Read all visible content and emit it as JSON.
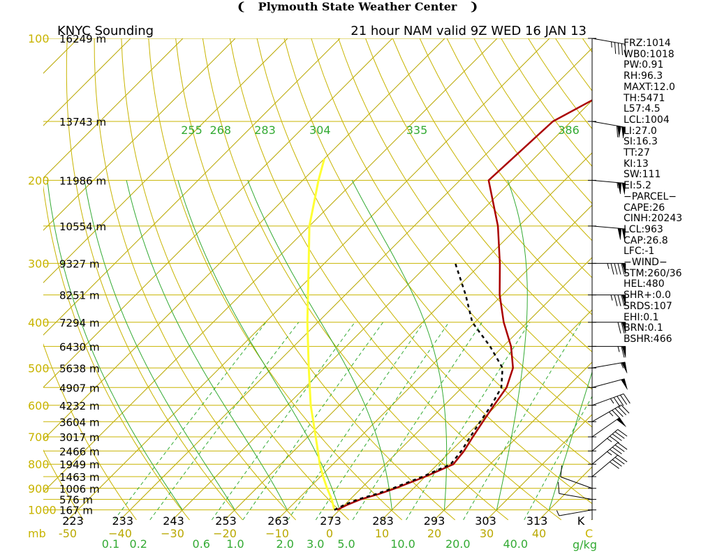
{
  "header": {
    "title": "Plymouth State Weather Center",
    "flag_left": "❨",
    "flag_right": "❩"
  },
  "chart_data": {
    "type": "line",
    "subtitle_left": "KNYC Sounding",
    "subtitle_right": "21 hour NAM valid 9Z WED 16 JAN 13",
    "pressure_label": "mb",
    "pressure_levels": [
      100,
      200,
      300,
      400,
      500,
      600,
      700,
      800,
      900,
      1000
    ],
    "height_labels": [
      {
        "p": 100,
        "label": "16249 m"
      },
      {
        "p": 150,
        "label": "13743 m"
      },
      {
        "p": 200,
        "label": "11986 m"
      },
      {
        "p": 250,
        "label": "10554 m"
      },
      {
        "p": 300,
        "label": "9327 m"
      },
      {
        "p": 350,
        "label": "8251 m"
      },
      {
        "p": 400,
        "label": "7294 m"
      },
      {
        "p": 450,
        "label": "6430 m"
      },
      {
        "p": 500,
        "label": "5638 m"
      },
      {
        "p": 550,
        "label": "4907 m"
      },
      {
        "p": 600,
        "label": "4232 m"
      },
      {
        "p": 650,
        "label": "3604 m"
      },
      {
        "p": 700,
        "label": "3017 m"
      },
      {
        "p": 750,
        "label": "2466 m"
      },
      {
        "p": 800,
        "label": "1949 m"
      },
      {
        "p": 850,
        "label": "1463 m"
      },
      {
        "p": 900,
        "label": "1006 m"
      },
      {
        "p": 950,
        "label": "576 m"
      },
      {
        "p": 1000,
        "label": "167 m"
      }
    ],
    "temperature_ticks": [
      -50,
      -40,
      -30,
      -20,
      -10,
      0,
      10,
      20,
      30,
      40
    ],
    "temperature_tick_labels": [
      "-50",
      "−40",
      "−30",
      "−20",
      "−10",
      "0",
      "10",
      "20",
      "30",
      "40"
    ],
    "temperature_label_right": "C",
    "mixing_ratio_ticks": [
      {
        "label": "0.1",
        "x": -41.8
      },
      {
        "label": "0.2",
        "x": -36.5
      },
      {
        "label": "0.6",
        "x": -24.5
      },
      {
        "label": "1.0",
        "x": -18.0
      },
      {
        "label": "2.0",
        "x": -8.5
      },
      {
        "label": "3.0",
        "x": -2.7
      },
      {
        "label": "5.0",
        "x": 3.2
      },
      {
        "label": "10.0",
        "x": 14.0
      },
      {
        "label": "20.0",
        "x": 24.5
      },
      {
        "label": "40.0",
        "x": 35.5
      }
    ],
    "mixing_ratio_label": "g/kg",
    "theta_labels": [
      {
        "label": "223",
        "x": -49.0
      },
      {
        "label": "233",
        "x": -39.5
      },
      {
        "label": "243",
        "x": -29.8
      },
      {
        "label": "253",
        "x": -19.8
      },
      {
        "label": "263",
        "x": -9.8
      },
      {
        "label": "273",
        "x": 0.2
      },
      {
        "label": "283",
        "x": 10.2
      },
      {
        "label": "293",
        "x": 20.0
      },
      {
        "label": "303",
        "x": 29.8
      },
      {
        "label": "313",
        "x": 39.6
      },
      {
        "label": "K",
        "x": 48.0
      }
    ],
    "theta_e_labels": [
      {
        "label": "255",
        "x": -53.0
      },
      {
        "label": "268",
        "x": -47.5
      },
      {
        "label": "283",
        "x": -39.0
      },
      {
        "label": "304",
        "x": -28.5
      },
      {
        "label": "335",
        "x": -10.0
      },
      {
        "label": "386",
        "x": 19.0
      }
    ],
    "temperature_profile": [
      [
        1000,
        -0.5
      ],
      [
        975,
        0.5
      ],
      [
        950,
        2.0
      ],
      [
        925,
        4.5
      ],
      [
        900,
        6.5
      ],
      [
        850,
        10.0
      ],
      [
        800,
        13.0
      ],
      [
        750,
        12.5
      ],
      [
        700,
        11.5
      ],
      [
        650,
        10.5
      ],
      [
        600,
        9.5
      ],
      [
        550,
        8.5
      ],
      [
        500,
        6.0
      ],
      [
        450,
        1.5
      ],
      [
        400,
        -4.5
      ],
      [
        350,
        -10.5
      ],
      [
        300,
        -16.5
      ],
      [
        250,
        -24.0
      ],
      [
        200,
        -34.5
      ],
      [
        150,
        -33.5
      ],
      [
        100,
        -20.0
      ]
    ],
    "dewpoint_profile": [
      [
        1000,
        -1.0
      ],
      [
        975,
        0.0
      ],
      [
        950,
        1.5
      ],
      [
        925,
        4.0
      ],
      [
        900,
        6.0
      ],
      [
        850,
        9.5
      ],
      [
        800,
        12.5
      ],
      [
        750,
        12.0
      ],
      [
        700,
        11.0
      ],
      [
        650,
        10.0
      ],
      [
        600,
        9.0
      ],
      [
        550,
        7.5
      ],
      [
        500,
        4.0
      ],
      [
        450,
        -2.5
      ],
      [
        400,
        -10.5
      ],
      [
        350,
        -17.0
      ],
      [
        300,
        -25.0
      ]
    ],
    "parcel_path": [
      [
        1000,
        -1.0
      ],
      [
        950,
        -3.5
      ],
      [
        900,
        -6.5
      ],
      [
        850,
        -9.5
      ],
      [
        800,
        -12.5
      ],
      [
        700,
        -18.5
      ],
      [
        600,
        -25.5
      ],
      [
        500,
        -33.0
      ],
      [
        400,
        -42.0
      ],
      [
        300,
        -53.0
      ],
      [
        250,
        -60.0
      ],
      [
        200,
        -67.0
      ],
      [
        180,
        -70.0
      ]
    ],
    "wind_barbs": [
      {
        "p": 100,
        "dir": 280,
        "kt": 45
      },
      {
        "p": 150,
        "dir": 280,
        "kt": 110
      },
      {
        "p": 200,
        "dir": 275,
        "kt": 105
      },
      {
        "p": 250,
        "dir": 275,
        "kt": 100
      },
      {
        "p": 300,
        "dir": 270,
        "kt": 95
      },
      {
        "p": 350,
        "dir": 270,
        "kt": 85
      },
      {
        "p": 400,
        "dir": 270,
        "kt": 70
      },
      {
        "p": 450,
        "dir": 270,
        "kt": 65
      },
      {
        "p": 500,
        "dir": 260,
        "kt": 55
      },
      {
        "p": 550,
        "dir": 255,
        "kt": 50
      },
      {
        "p": 600,
        "dir": 250,
        "kt": 45
      },
      {
        "p": 650,
        "dir": 240,
        "kt": 45
      },
      {
        "p": 700,
        "dir": 235,
        "kt": 50
      },
      {
        "p": 750,
        "dir": 230,
        "kt": 45
      },
      {
        "p": 800,
        "dir": 230,
        "kt": 45
      },
      {
        "p": 850,
        "dir": 230,
        "kt": 40
      },
      {
        "p": 900,
        "dir": 110,
        "kt": 10
      },
      {
        "p": 950,
        "dir": 100,
        "kt": 10
      },
      {
        "p": 1000,
        "dir": 80,
        "kt": 5
      }
    ],
    "colors": {
      "temperature": "#aa0000",
      "dewpoint": "#000000",
      "parcel": "#ffff33",
      "isobar": "#c8b400",
      "isotherm": "#b9a800",
      "dry_adiabat": "#c8b400",
      "moist_adiabat": "#33aa33",
      "mixing_ratio": "#33aa33",
      "text_black": "#000000"
    }
  },
  "indices": [
    "FRZ:1014",
    "WB0:1018",
    "PW:0.91",
    "RH:96.3",
    "MAXT:12.0",
    "TH:5471",
    "L57:4.5",
    "LCL:1004",
    "LI:27.0",
    "SI:16.3",
    "TT:27",
    "KI:13",
    "SW:111",
    "EI:5.2",
    "−PARCEL−",
    "CAPE:26",
    "CINH:20243",
    "LCL:963",
    "CAP:26.8",
    "LFC:-1",
    "−WIND−",
    "STM:260/36",
    "HEL:480",
    "SHR+:0.0",
    "SRDS:107",
    "EHI:0.1",
    "BRN:0.1",
    "BSHR:466"
  ]
}
